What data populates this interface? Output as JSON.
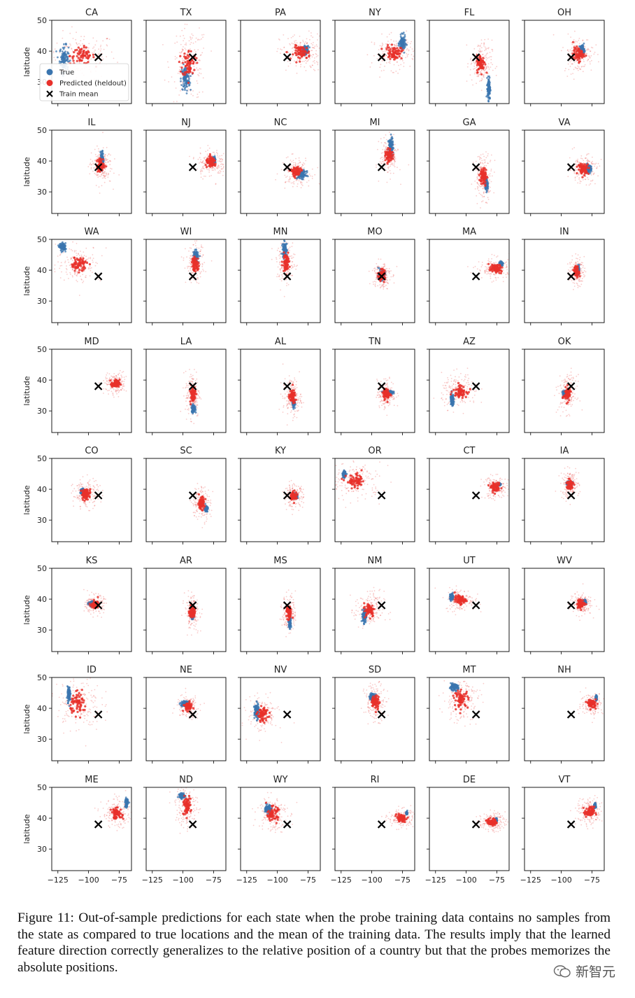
{
  "caption": "Figure 11: Out-of-sample predictions for each state when the probe training data contains no samples from the state as compared to true locations and the mean of the training data.  The results imply that the learned feature direction correctly generalizes to the relative position of a country but that the probes memorizes the absolute positions.",
  "watermark": "新智元",
  "watermark_icon": "wechat-icon",
  "colors": {
    "true": "#3b75af",
    "predicted": "#e8302a",
    "train_mean": "#000000"
  },
  "chart_data": {
    "type": "scatter",
    "grid": false,
    "layout": "8 rows x 6 columns of small multiples",
    "xlim": [
      -130,
      -65
    ],
    "ylim": [
      23,
      50
    ],
    "xticks": [
      -125,
      -100,
      -75
    ],
    "xtick_labels": [
      "−125",
      "−100",
      "−75"
    ],
    "yticks": [
      30,
      40,
      50
    ],
    "ytick_labels": [
      "30",
      "40",
      "50"
    ],
    "ylabel": "latitude",
    "legend": {
      "location": "lower-left of CA panel",
      "entries": [
        {
          "label": "True",
          "marker": "circle",
          "color": "#3b75af"
        },
        {
          "label": "Predicted (heldout)",
          "marker": "circle",
          "color": "#e8302a"
        },
        {
          "label": "Train mean",
          "marker": "x",
          "color": "#000000"
        }
      ]
    },
    "train_mean": [
      -92,
      38
    ],
    "panels": [
      {
        "state": "CA",
        "true_center": [
          -120,
          37.5
        ],
        "true_spread": [
          3,
          3.5
        ],
        "pred_center": [
          -105,
          38.5
        ],
        "pred_spread": [
          9,
          2.5
        ]
      },
      {
        "state": "TX",
        "true_center": [
          -98,
          31
        ],
        "true_spread": [
          3,
          3.5
        ],
        "pred_center": [
          -95,
          36
        ],
        "pred_spread": [
          5,
          4
        ]
      },
      {
        "state": "PA",
        "true_center": [
          -77,
          40.5
        ],
        "true_spread": [
          2,
          1
        ],
        "pred_center": [
          -80,
          39.5
        ],
        "pred_spread": [
          6,
          2
        ]
      },
      {
        "state": "NY",
        "true_center": [
          -75,
          42.5
        ],
        "true_spread": [
          2,
          2
        ],
        "pred_center": [
          -82,
          39.5
        ],
        "pred_spread": [
          6,
          1.8
        ]
      },
      {
        "state": "FL",
        "true_center": [
          -81.5,
          28
        ],
        "true_spread": [
          1,
          3
        ],
        "pred_center": [
          -88,
          36
        ],
        "pred_spread": [
          3,
          2.5
        ]
      },
      {
        "state": "OH",
        "true_center": [
          -83,
          40.5
        ],
        "true_spread": [
          1.5,
          1.2
        ],
        "pred_center": [
          -86,
          39
        ],
        "pred_spread": [
          4,
          2
        ]
      },
      {
        "state": "IL",
        "true_center": [
          -89,
          40.5
        ],
        "true_spread": [
          1,
          2
        ],
        "pred_center": [
          -90,
          38.5
        ],
        "pred_spread": [
          3,
          2
        ]
      },
      {
        "state": "NJ",
        "true_center": [
          -74.5,
          40.3
        ],
        "true_spread": [
          0.8,
          0.8
        ],
        "pred_center": [
          -77,
          39.5
        ],
        "pred_spread": [
          4,
          1.5
        ]
      },
      {
        "state": "NC",
        "true_center": [
          -80,
          35.5
        ],
        "true_spread": [
          3,
          1
        ],
        "pred_center": [
          -85,
          36.5
        ],
        "pred_spread": [
          4,
          1.5
        ]
      },
      {
        "state": "MI",
        "true_center": [
          -84.5,
          44.5
        ],
        "true_spread": [
          1.5,
          2.5
        ],
        "pred_center": [
          -86,
          41.5
        ],
        "pred_spread": [
          2.5,
          2
        ]
      },
      {
        "state": "GA",
        "true_center": [
          -83.5,
          32.5
        ],
        "true_spread": [
          1,
          1.5
        ],
        "pred_center": [
          -86,
          35
        ],
        "pred_spread": [
          2.5,
          2.5
        ]
      },
      {
        "state": "VA",
        "true_center": [
          -78,
          37.5
        ],
        "true_spread": [
          2,
          1
        ],
        "pred_center": [
          -82,
          37.5
        ],
        "pred_spread": [
          4,
          1.5
        ]
      },
      {
        "state": "WA",
        "true_center": [
          -121,
          47.5
        ],
        "true_spread": [
          2,
          1
        ],
        "pred_center": [
          -108,
          42
        ],
        "pred_spread": [
          6,
          2
        ]
      },
      {
        "state": "WI",
        "true_center": [
          -89.5,
          44.5
        ],
        "true_spread": [
          1.5,
          1.5
        ],
        "pred_center": [
          -90,
          42
        ],
        "pred_spread": [
          2.5,
          2
        ]
      },
      {
        "state": "MN",
        "true_center": [
          -94,
          46.5
        ],
        "true_spread": [
          1.5,
          2
        ],
        "pred_center": [
          -93,
          42.5
        ],
        "pred_spread": [
          2.5,
          2.5
        ]
      },
      {
        "state": "MO",
        "true_center": [
          -92,
          38.5
        ],
        "true_spread": [
          2,
          1.2
        ],
        "pred_center": [
          -92,
          38.5
        ],
        "pred_spread": [
          2.5,
          1.5
        ]
      },
      {
        "state": "MA",
        "true_center": [
          -71.5,
          42.2
        ],
        "true_spread": [
          1,
          0.5
        ],
        "pred_center": [
          -76,
          40.5
        ],
        "pred_spread": [
          5,
          1.2
        ]
      },
      {
        "state": "IN",
        "true_center": [
          -86.2,
          40
        ],
        "true_spread": [
          0.8,
          1.2
        ],
        "pred_center": [
          -87.5,
          39.5
        ],
        "pred_spread": [
          2,
          1.5
        ]
      },
      {
        "state": "MD",
        "true_center": [
          -76.8,
          39.2
        ],
        "true_spread": [
          1,
          0.4
        ],
        "pred_center": [
          -78,
          38.8
        ],
        "pred_spread": [
          3,
          1.2
        ]
      },
      {
        "state": "LA",
        "true_center": [
          -91.5,
          30.8
        ],
        "true_spread": [
          1.2,
          1
        ],
        "pred_center": [
          -92,
          35.5
        ],
        "pred_spread": [
          2,
          2.5
        ]
      },
      {
        "state": "AL",
        "true_center": [
          -86.8,
          32.8
        ],
        "true_spread": [
          0.8,
          1.2
        ],
        "pred_center": [
          -88,
          34.5
        ],
        "pred_spread": [
          2.5,
          2
        ]
      },
      {
        "state": "TN",
        "true_center": [
          -86.5,
          36
        ],
        "true_spread": [
          3,
          0.5
        ],
        "pred_center": [
          -88,
          35.5
        ],
        "pred_spread": [
          2.5,
          1.5
        ]
      },
      {
        "state": "AZ",
        "true_center": [
          -111.5,
          33.5
        ],
        "true_spread": [
          1.2,
          1.5
        ],
        "pred_center": [
          -105,
          36.5
        ],
        "pred_spread": [
          5,
          1.8
        ]
      },
      {
        "state": "OK",
        "true_center": [
          -97,
          35.5
        ],
        "true_spread": [
          1.5,
          0.8
        ],
        "pred_center": [
          -95,
          35.5
        ],
        "pred_spread": [
          2.5,
          2
        ]
      },
      {
        "state": "CO",
        "true_center": [
          -105,
          39.2
        ],
        "true_spread": [
          1.2,
          0.8
        ],
        "pred_center": [
          -102,
          38.5
        ],
        "pred_spread": [
          3.5,
          1.5
        ]
      },
      {
        "state": "SC",
        "true_center": [
          -81,
          33.8
        ],
        "true_spread": [
          1,
          0.8
        ],
        "pred_center": [
          -85,
          35.5
        ],
        "pred_spread": [
          2.5,
          1.8
        ]
      },
      {
        "state": "KY",
        "true_center": [
          -85,
          37.8
        ],
        "true_spread": [
          1.5,
          0.6
        ],
        "pred_center": [
          -86.5,
          37.8
        ],
        "pred_spread": [
          2.5,
          1.2
        ]
      },
      {
        "state": "OR",
        "true_center": [
          -122.5,
          44.8
        ],
        "true_spread": [
          1,
          0.8
        ],
        "pred_center": [
          -113,
          42.5
        ],
        "pred_spread": [
          7,
          2
        ]
      },
      {
        "state": "CT",
        "true_center": [
          -72.8,
          41.6
        ],
        "true_spread": [
          0.8,
          0.3
        ],
        "pred_center": [
          -76,
          40.5
        ],
        "pred_spread": [
          3.5,
          1.2
        ]
      },
      {
        "state": "IA",
        "true_center": [
          -93.5,
          42
        ],
        "true_spread": [
          1.5,
          0.6
        ],
        "pred_center": [
          -93,
          41.5
        ],
        "pred_spread": [
          2.5,
          1.5
        ]
      },
      {
        "state": "KS",
        "true_center": [
          -97.5,
          38.5
        ],
        "true_spread": [
          2,
          0.6
        ],
        "pred_center": [
          -95,
          38.3
        ],
        "pred_spread": [
          2.5,
          1
        ]
      },
      {
        "state": "AR",
        "true_center": [
          -92.5,
          34.8
        ],
        "true_spread": [
          1,
          1
        ],
        "pred_center": [
          -92.5,
          35.8
        ],
        "pred_spread": [
          2,
          1.8
        ]
      },
      {
        "state": "MS",
        "true_center": [
          -89.8,
          32.5
        ],
        "true_spread": [
          0.8,
          1.5
        ],
        "pred_center": [
          -90.5,
          35.5
        ],
        "pred_spread": [
          1.8,
          2
        ]
      },
      {
        "state": "NM",
        "true_center": [
          -106,
          34.5
        ],
        "true_spread": [
          1.2,
          1.8
        ],
        "pred_center": [
          -102,
          36.5
        ],
        "pred_spread": [
          4,
          2
        ]
      },
      {
        "state": "UT",
        "true_center": [
          -111.8,
          40.8
        ],
        "true_spread": [
          1,
          0.8
        ],
        "pred_center": [
          -105,
          39.8
        ],
        "pred_spread": [
          4,
          1.2
        ]
      },
      {
        "state": "WV",
        "true_center": [
          -81,
          39
        ],
        "true_spread": [
          1,
          0.6
        ],
        "pred_center": [
          -84,
          38.5
        ],
        "pred_spread": [
          3,
          1.2
        ]
      },
      {
        "state": "ID",
        "true_center": [
          -116,
          44.5
        ],
        "true_spread": [
          1,
          2
        ],
        "pred_center": [
          -108,
          41.5
        ],
        "pred_spread": [
          6,
          3
        ]
      },
      {
        "state": "NE",
        "true_center": [
          -98.5,
          41.5
        ],
        "true_spread": [
          2.5,
          0.6
        ],
        "pred_center": [
          -96,
          40.5
        ],
        "pred_spread": [
          3,
          1.2
        ]
      },
      {
        "state": "NV",
        "true_center": [
          -117,
          39
        ],
        "true_spread": [
          1.5,
          2
        ],
        "pred_center": [
          -112,
          38
        ],
        "pred_spread": [
          4,
          2
        ]
      },
      {
        "state": "SD",
        "true_center": [
          -99.5,
          43.8
        ],
        "true_spread": [
          2,
          0.8
        ],
        "pred_center": [
          -97,
          42
        ],
        "pred_spread": [
          3,
          2
        ]
      },
      {
        "state": "MT",
        "true_center": [
          -110,
          46.8
        ],
        "true_spread": [
          3,
          0.8
        ],
        "pred_center": [
          -104,
          43
        ],
        "pred_spread": [
          5,
          2.5
        ]
      },
      {
        "state": "NH",
        "true_center": [
          -71.5,
          43.3
        ],
        "true_spread": [
          0.5,
          0.6
        ],
        "pred_center": [
          -75,
          41.5
        ],
        "pred_spread": [
          3,
          1.2
        ]
      },
      {
        "state": "ME",
        "true_center": [
          -69,
          45
        ],
        "true_spread": [
          1,
          1.2
        ],
        "pred_center": [
          -77,
          41.5
        ],
        "pred_spread": [
          4,
          1.5
        ]
      },
      {
        "state": "ND",
        "true_center": [
          -100.5,
          47.2
        ],
        "true_spread": [
          2,
          0.6
        ],
        "pred_center": [
          -97,
          44
        ],
        "pred_spread": [
          3,
          2.5
        ]
      },
      {
        "state": "WY",
        "true_center": [
          -107.5,
          43
        ],
        "true_spread": [
          2,
          1
        ],
        "pred_center": [
          -104,
          41.5
        ],
        "pred_spread": [
          4,
          2
        ]
      },
      {
        "state": "RI",
        "true_center": [
          -71.5,
          41.7
        ],
        "true_spread": [
          0.4,
          0.3
        ],
        "pred_center": [
          -76,
          40
        ],
        "pred_spread": [
          3.5,
          1
        ]
      },
      {
        "state": "DE",
        "true_center": [
          -75.5,
          39.3
        ],
        "true_spread": [
          0.5,
          0.5
        ],
        "pred_center": [
          -79,
          38.8
        ],
        "pred_spread": [
          3.5,
          1
        ]
      },
      {
        "state": "VT",
        "true_center": [
          -72.6,
          44
        ],
        "true_spread": [
          0.6,
          0.7
        ],
        "pred_center": [
          -77,
          42
        ],
        "pred_spread": [
          3.5,
          1.5
        ]
      }
    ]
  }
}
